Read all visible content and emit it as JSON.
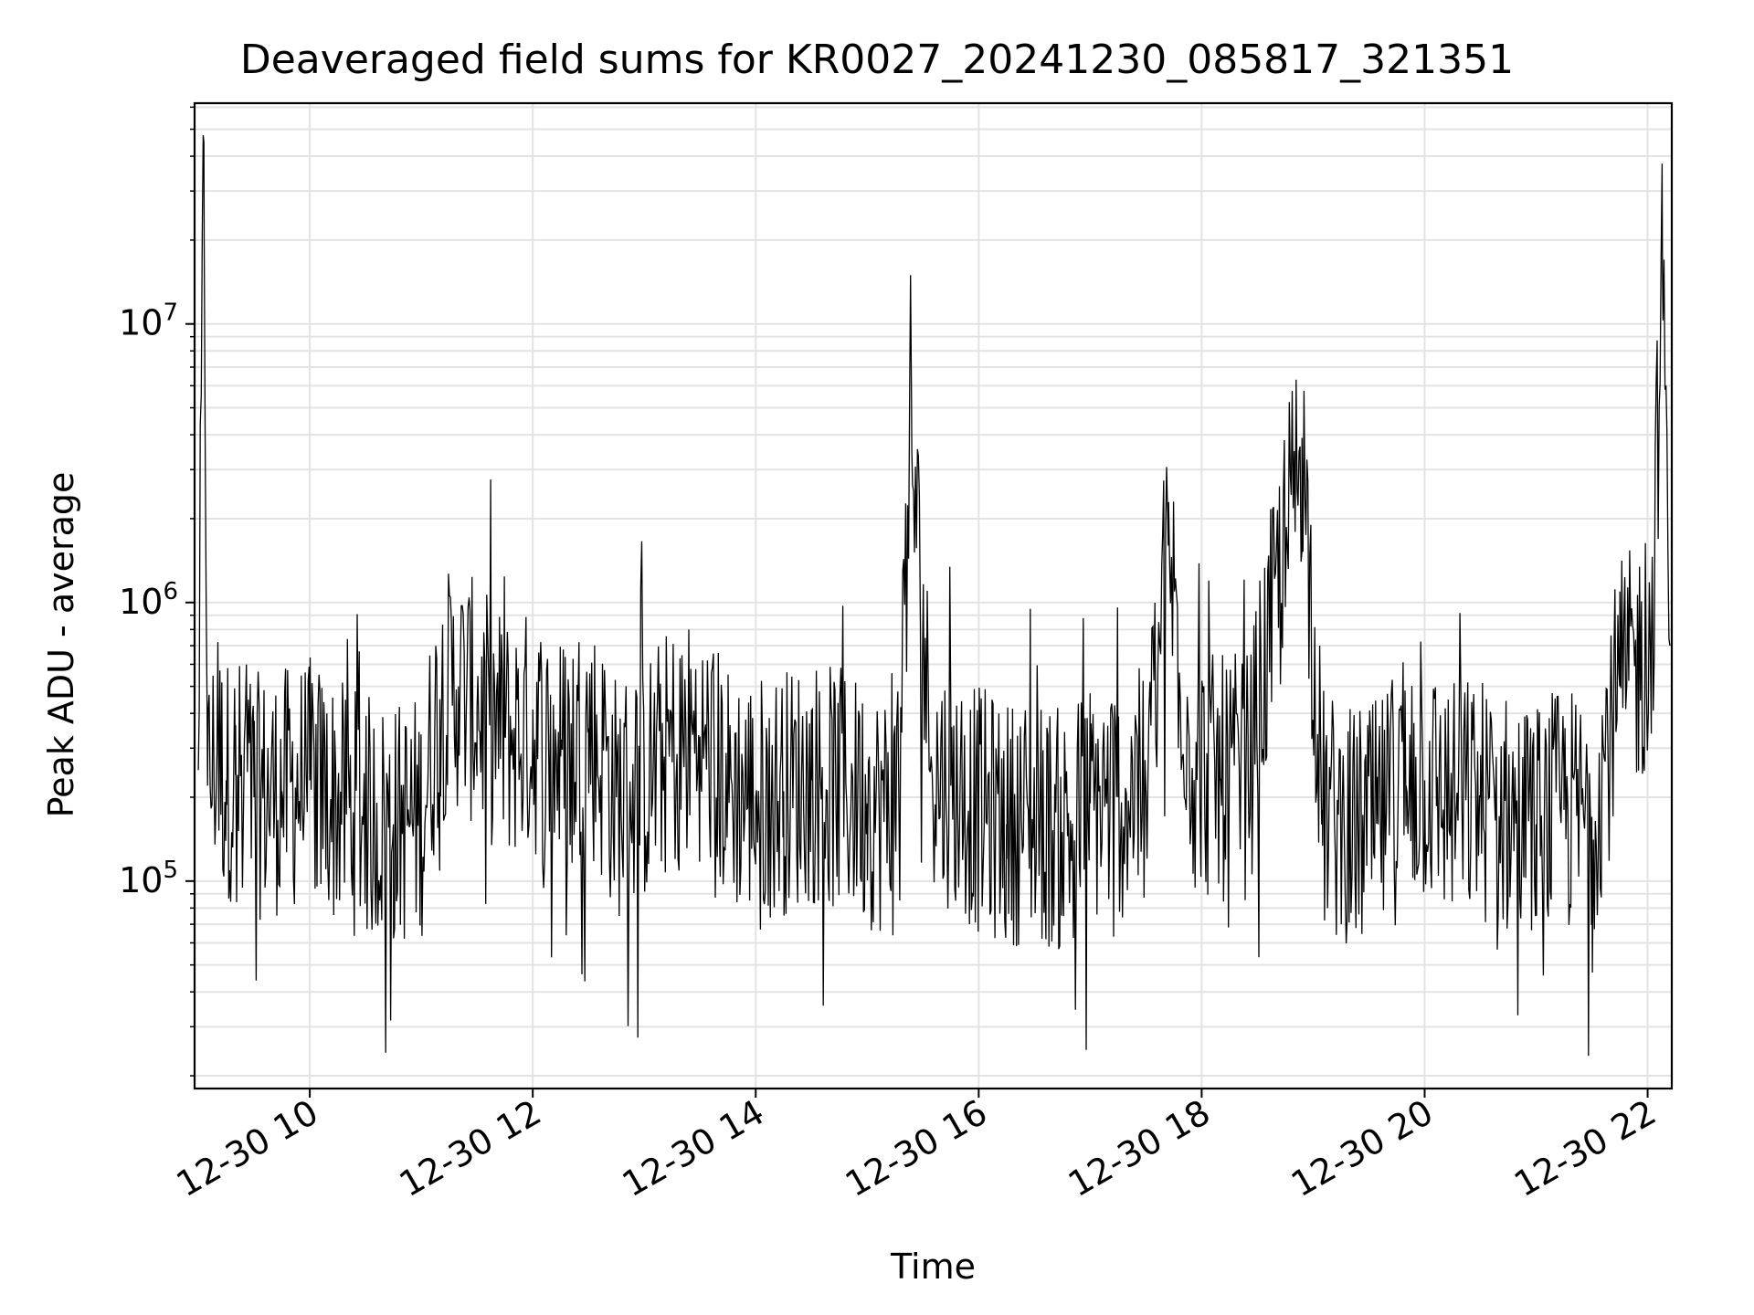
{
  "chart_data": {
    "type": "line",
    "title": "Deaveraged field sums for KR0027_20241230_085817_321351",
    "xlabel": "Time",
    "ylabel": "Peak ADU - average",
    "xlim": [
      "2024-12-30 08:58",
      "2024-12-30 22:13"
    ],
    "ylim": [
      18000,
      62000000
    ],
    "yscale": "log",
    "grid": true,
    "line_color": "#000000",
    "x_ticks": [
      "2024-12-30 10:00",
      "2024-12-30 12:00",
      "2024-12-30 14:00",
      "2024-12-30 16:00",
      "2024-12-30 18:00",
      "2024-12-30 20:00",
      "2024-12-30 22:00"
    ],
    "x_tick_labels": [
      "12-30 10",
      "12-30 12",
      "12-30 14",
      "12-30 16",
      "12-30 18",
      "12-30 20",
      "12-30 22"
    ],
    "y_ticks": [
      100000,
      1000000,
      10000000
    ],
    "y_tick_bases": [
      "10",
      "10",
      "10"
    ],
    "y_tick_exponents": [
      "5",
      "6",
      "7"
    ],
    "series": [
      {
        "x": [
          "2024-12-30 09:00",
          "2024-12-30 09:03",
          "2024-12-30 09:05",
          "2024-12-30 09:10",
          "2024-12-30 09:15",
          "2024-12-30 09:20",
          "2024-12-30 09:30",
          "2024-12-30 09:45",
          "2024-12-30 10:00",
          "2024-12-30 10:15",
          "2024-12-30 10:30",
          "2024-12-30 10:45",
          "2024-12-30 11:00",
          "2024-12-30 11:10",
          "2024-12-30 11:20",
          "2024-12-30 11:30",
          "2024-12-30 11:45",
          "2024-12-30 12:00",
          "2024-12-30 12:15",
          "2024-12-30 12:30",
          "2024-12-30 12:45",
          "2024-12-30 13:00",
          "2024-12-30 13:15",
          "2024-12-30 13:30",
          "2024-12-30 13:45",
          "2024-12-30 14:00",
          "2024-12-30 14:15",
          "2024-12-30 14:30",
          "2024-12-30 14:45",
          "2024-12-30 15:00",
          "2024-12-30 15:15",
          "2024-12-30 15:24",
          "2024-12-30 15:35",
          "2024-12-30 15:45",
          "2024-12-30 16:00",
          "2024-12-30 16:15",
          "2024-12-30 16:28",
          "2024-12-30 16:45",
          "2024-12-30 17:00",
          "2024-12-30 17:15",
          "2024-12-30 17:30",
          "2024-12-30 17:42",
          "2024-12-30 17:55",
          "2024-12-30 18:10",
          "2024-12-30 18:25",
          "2024-12-30 18:54",
          "2024-12-30 19:05",
          "2024-12-30 19:20",
          "2024-12-30 19:35",
          "2024-12-30 19:50",
          "2024-12-30 20:00",
          "2024-12-30 20:15",
          "2024-12-30 20:30",
          "2024-12-30 20:45",
          "2024-12-30 21:00",
          "2024-12-30 21:15",
          "2024-12-30 21:30",
          "2024-12-30 21:45",
          "2024-12-30 21:55",
          "2024-12-30 22:02",
          "2024-12-30 22:08",
          "2024-12-30 22:12"
        ],
        "y": [
          250000,
          45000000,
          220000,
          280000,
          230000,
          240000,
          200000,
          210000,
          230000,
          190000,
          170000,
          160000,
          170000,
          450000,
          500000,
          420000,
          330000,
          340000,
          280000,
          350000,
          200000,
          230000,
          300000,
          330000,
          220000,
          200000,
          210000,
          230000,
          210000,
          190000,
          170000,
          3500000,
          240000,
          220000,
          180000,
          160000,
          170000,
          150000,
          190000,
          200000,
          210000,
          1600000,
          250000,
          230000,
          240000,
          3900000,
          180000,
          150000,
          160000,
          220000,
          230000,
          190000,
          200000,
          170000,
          160000,
          180000,
          170000,
          500000,
          600000,
          650000,
          16000000,
          700000
        ]
      }
    ]
  }
}
